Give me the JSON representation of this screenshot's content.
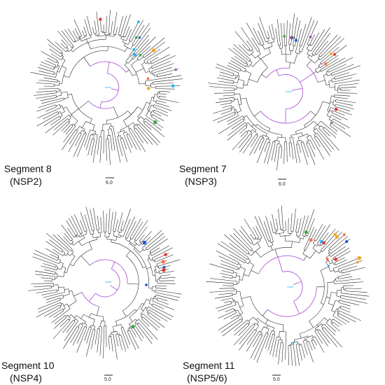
{
  "panels": [
    {
      "id": "seg8",
      "segment_label": "Segment 8",
      "protein_label": "(NSP2)",
      "scale_label": "6.0"
    },
    {
      "id": "seg7",
      "segment_label": "Segment 7",
      "protein_label": "(NSP3)",
      "scale_label": "6.0"
    },
    {
      "id": "seg10",
      "segment_label": "Segment 10",
      "protein_label": "(NSP4)",
      "scale_label": "5.0"
    },
    {
      "id": "seg11",
      "segment_label": "Segment 11",
      "protein_label": "(NSP5/6)",
      "scale_label": "5.0"
    }
  ],
  "colors": {
    "branch": "#1a1a1a",
    "root_branch": "#b05cd6",
    "root_branch_alt": "#4fc3e8",
    "tip_colors": [
      "#e53935",
      "#f5a623",
      "#43a047",
      "#1e5bd8",
      "#8e44ad",
      "#29b6f6",
      "#ff7043"
    ]
  }
}
